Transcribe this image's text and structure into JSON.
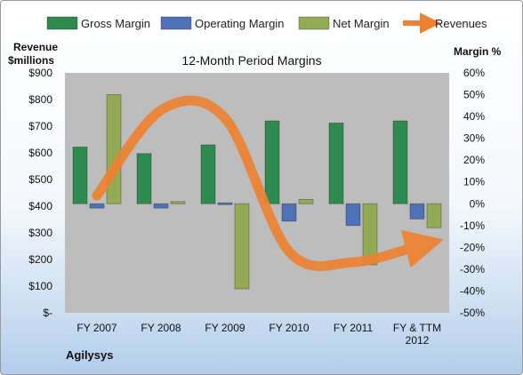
{
  "colors": {
    "gross_margin": "#2e8b4e",
    "operating_margin": "#4f71b8",
    "net_margin": "#93ab55",
    "revenues": "#ed8232",
    "plot_background": "#bdbdbd"
  },
  "company": "Agilysys",
  "chart_data": {
    "type": "bar",
    "title": "12-Month Period Margins",
    "left_axis_title": [
      "Revenue",
      "$millions"
    ],
    "right_axis_title": "Margin %",
    "categories": [
      [
        "FY 2007"
      ],
      [
        "FY 2008"
      ],
      [
        "FY 2009"
      ],
      [
        "FY 2010"
      ],
      [
        "FY 2011"
      ],
      [
        "FY & TTM",
        "2012"
      ]
    ],
    "left_axis": {
      "min": 0,
      "max": 900,
      "step": 100,
      "tick_labels": [
        "$-",
        "$100",
        "$200",
        "$300",
        "$400",
        "$500",
        "$600",
        "$700",
        "$800",
        "$900"
      ]
    },
    "right_axis": {
      "min": -50,
      "max": 60,
      "step": 10,
      "tick_labels": [
        "-50%",
        "-40%",
        "-30%",
        "-20%",
        "-10%",
        "0%",
        "10%",
        "20%",
        "30%",
        "40%",
        "50%",
        "60%"
      ]
    },
    "legend": {
      "position": "top",
      "items": [
        {
          "label": "Gross Margin",
          "key": "gross_margin",
          "kind": "bar"
        },
        {
          "label": "Operating Margin",
          "key": "operating_margin",
          "kind": "bar"
        },
        {
          "label": "Net Margin",
          "key": "net_margin",
          "kind": "bar"
        },
        {
          "label": "Revenues",
          "key": "revenues",
          "kind": "arrow"
        }
      ]
    },
    "series": [
      {
        "name": "Gross Margin",
        "key": "gross_margin",
        "axis": "right",
        "values": [
          26,
          23,
          27,
          38,
          37,
          38
        ]
      },
      {
        "name": "Operating Margin",
        "key": "operating_margin",
        "axis": "right",
        "values": [
          -2,
          -2,
          0,
          -8,
          -10,
          -7
        ]
      },
      {
        "name": "Net Margin",
        "key": "net_margin",
        "axis": "right",
        "values": [
          50,
          1,
          -39,
          2,
          -28,
          -11
        ]
      },
      {
        "name": "Revenues",
        "key": "revenues",
        "axis": "left",
        "type": "line",
        "values": [
          440,
          760,
          730,
          230,
          190,
          250
        ]
      }
    ]
  }
}
